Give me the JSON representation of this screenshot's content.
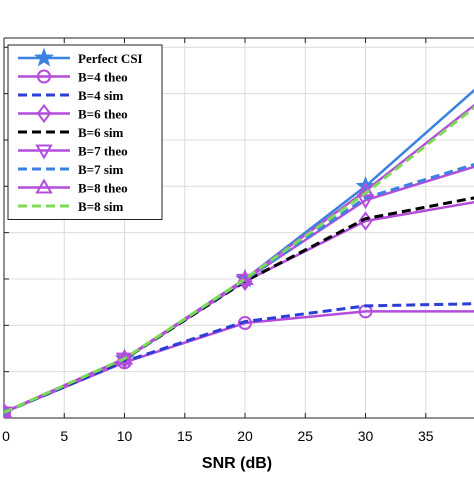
{
  "chart_data": {
    "type": "line",
    "title": "",
    "xlabel": "SNR (dB)",
    "ylabel": "",
    "xlim": [
      0,
      39
    ],
    "ylim": [
      0,
      8.2
    ],
    "xticks": [
      0,
      5,
      10,
      15,
      20,
      25,
      30,
      35
    ],
    "xtick_labels": [
      "0",
      "5",
      "10",
      "15",
      "20",
      "25",
      "30",
      "35"
    ],
    "yticks": [
      1,
      2,
      3,
      4,
      5,
      6,
      7,
      8
    ],
    "grid": true,
    "legend_position": "top-left",
    "series": [
      {
        "name": "Perfect CSI",
        "color": "#3b82e0",
        "dash": "solid",
        "marker": "star",
        "x": [
          0,
          10,
          20,
          30,
          40
        ],
        "y": [
          0.12,
          1.28,
          3.0,
          5.0,
          7.3
        ]
      },
      {
        "name": "B=4 theo",
        "color": "#b44ddb",
        "dash": "solid",
        "marker": "circle",
        "x": [
          0,
          10,
          20,
          30,
          40
        ],
        "y": [
          0.12,
          1.2,
          2.05,
          2.3,
          2.3
        ]
      },
      {
        "name": "B=4 sim",
        "color": "#2a3fd6",
        "dash": "dashed",
        "marker": "none",
        "x": [
          0,
          10,
          20,
          30,
          40
        ],
        "y": [
          0.12,
          1.22,
          2.08,
          2.42,
          2.47
        ]
      },
      {
        "name": "B=6 theo",
        "color": "#b44ddb",
        "dash": "solid",
        "marker": "diamond",
        "x": [
          0,
          10,
          20,
          30,
          40
        ],
        "y": [
          0.12,
          1.27,
          2.95,
          4.25,
          4.7
        ]
      },
      {
        "name": "B=6 sim",
        "color": "#000000",
        "dash": "dashed",
        "marker": "none",
        "x": [
          0,
          10,
          20,
          30,
          40
        ],
        "y": [
          0.12,
          1.27,
          2.95,
          4.3,
          4.8
        ]
      },
      {
        "name": "B=7 theo",
        "color": "#b44ddb",
        "dash": "solid",
        "marker": "triangle-down",
        "x": [
          0,
          10,
          20,
          30,
          40
        ],
        "y": [
          0.12,
          1.28,
          2.98,
          4.7,
          5.5
        ]
      },
      {
        "name": "B=7 sim",
        "color": "#3b82e0",
        "dash": "dashed",
        "marker": "none",
        "x": [
          0,
          10,
          20,
          30,
          40
        ],
        "y": [
          0.12,
          1.28,
          2.98,
          4.75,
          5.55
        ]
      },
      {
        "name": "B=8 theo",
        "color": "#b44ddb",
        "dash": "solid",
        "marker": "triangle-up",
        "x": [
          0,
          10,
          20,
          30,
          40
        ],
        "y": [
          0.12,
          1.28,
          3.0,
          4.9,
          6.95
        ]
      },
      {
        "name": "B=8 sim",
        "color": "#7ed957",
        "dash": "dashed",
        "marker": "none",
        "x": [
          0,
          10,
          20,
          30,
          40
        ],
        "y": [
          0.12,
          1.28,
          3.0,
          4.85,
          6.9
        ]
      }
    ]
  }
}
